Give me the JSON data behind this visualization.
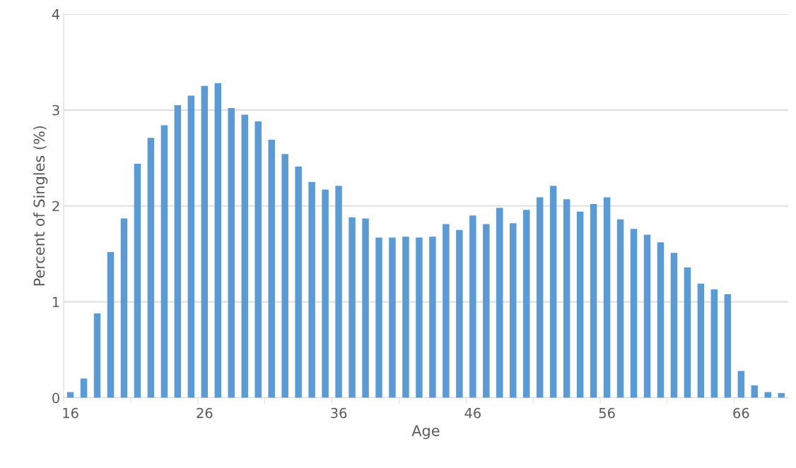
{
  "chart_data": {
    "type": "bar",
    "xlabel": "Age",
    "ylabel": "Percent of Singles (%)",
    "categories": [
      "16",
      null,
      null,
      null,
      null,
      null,
      null,
      null,
      null,
      null,
      "26",
      null,
      null,
      null,
      null,
      null,
      null,
      null,
      null,
      null,
      "36",
      null,
      null,
      null,
      null,
      null,
      null,
      null,
      null,
      null,
      "46",
      null,
      null,
      null,
      null,
      null,
      null,
      null,
      null,
      null,
      "56",
      null,
      null,
      null,
      null,
      null,
      null,
      null,
      null,
      null,
      "66",
      null,
      null,
      null
    ],
    "values": [
      0.06,
      0.2,
      0.88,
      1.52,
      1.87,
      2.44,
      2.71,
      2.84,
      3.05,
      3.15,
      3.25,
      3.28,
      3.02,
      2.95,
      2.88,
      2.69,
      2.54,
      2.41,
      2.25,
      2.17,
      2.21,
      1.88,
      1.87,
      1.67,
      1.67,
      1.68,
      1.67,
      1.68,
      1.81,
      1.75,
      1.9,
      1.81,
      1.98,
      1.82,
      1.96,
      2.09,
      2.21,
      2.07,
      1.94,
      2.02,
      2.09,
      1.86,
      1.76,
      1.7,
      1.62,
      1.51,
      1.36,
      1.19,
      1.13,
      1.08,
      0.28,
      0.13,
      0.06,
      0.05
    ],
    "color": "#5b9bd5",
    "ylim": [
      0,
      4
    ],
    "yticks": [
      0,
      1,
      2,
      3,
      4
    ],
    "grid": "y",
    "legend": false
  }
}
